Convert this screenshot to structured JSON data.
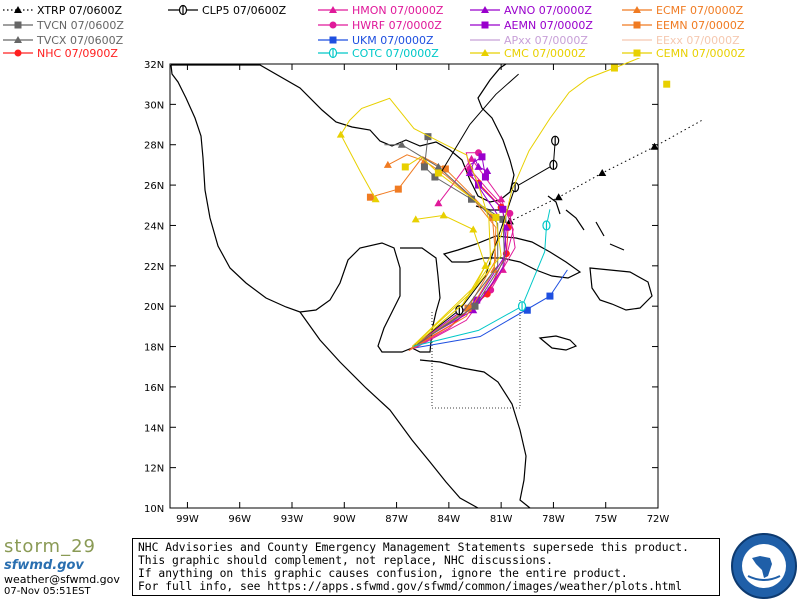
{
  "legend": [
    {
      "model": "XTRP",
      "time": "07/0600Z",
      "color": "#000000",
      "marker": "tri",
      "dashed": true
    },
    {
      "model": "CLP5",
      "time": "07/0600Z",
      "color": "#000000",
      "marker": "circbar",
      "dashed": false
    },
    {
      "model": "HMON",
      "time": "07/0000Z",
      "color": "#e0199a",
      "marker": "tri",
      "dashed": false
    },
    {
      "model": "AVNO",
      "time": "07/0000Z",
      "color": "#9900cc",
      "marker": "tri",
      "dashed": false
    },
    {
      "model": "ECMF",
      "time": "07/0000Z",
      "color": "#f07b22",
      "marker": "tri",
      "dashed": false
    },
    {
      "model": "TVCN",
      "time": "07/0600Z",
      "color": "#666666",
      "marker": "sq",
      "dashed": false
    },
    {
      "model": "HWRF",
      "time": "07/0000Z",
      "color": "#e0199a",
      "marker": "circ",
      "dashed": false
    },
    {
      "model": "AEMN",
      "time": "07/0000Z",
      "color": "#9900cc",
      "marker": "sq",
      "dashed": false
    },
    {
      "model": "EEMN",
      "time": "07/0000Z",
      "color": "#f07b22",
      "marker": "sq",
      "dashed": false
    },
    {
      "model": "TVCX",
      "time": "07/0600Z",
      "color": "#666666",
      "marker": "tri",
      "dashed": false
    },
    {
      "model": "UKM",
      "time": "07/0000Z",
      "color": "#1e4fe0",
      "marker": "sq",
      "dashed": false
    },
    {
      "model": "APxx",
      "time": "07/0000Z",
      "color": "#c8a0d8",
      "marker": "none",
      "dashed": false
    },
    {
      "model": "EExx",
      "time": "07/0000Z",
      "color": "#f5c8b0",
      "marker": "none",
      "dashed": false
    },
    {
      "model": "NHC",
      "time": "07/0900Z",
      "color": "#ff2020",
      "marker": "circ",
      "dashed": false
    },
    {
      "model": "COTC",
      "time": "07/0000Z",
      "color": "#00c8c8",
      "marker": "circbar",
      "dashed": false
    },
    {
      "model": "CMC",
      "time": "07/0000Z",
      "color": "#e8d000",
      "marker": "tri",
      "dashed": false
    },
    {
      "model": "CEMN",
      "time": "07/0000Z",
      "color": "#e8d000",
      "marker": "sq",
      "dashed": false
    }
  ],
  "map": {
    "lat_labels": [
      "32N",
      "30N",
      "28N",
      "26N",
      "24N",
      "22N",
      "20N",
      "18N",
      "16N",
      "14N",
      "12N",
      "10N"
    ],
    "lon_labels": [
      "99W",
      "96W",
      "93W",
      "90W",
      "87W",
      "84W",
      "81W",
      "78W",
      "75W",
      "72W"
    ],
    "lon_range": [
      -100,
      -72
    ],
    "lat_range": [
      10,
      32
    ]
  },
  "tracks": [
    {
      "model": "XTRP",
      "points": [
        [
          -69.5,
          29.2
        ],
        [
          -72.2,
          27.9
        ],
        [
          -75.2,
          26.6
        ],
        [
          -77.7,
          25.4
        ],
        [
          -80.5,
          24.2
        ]
      ],
      "markers": [
        [
          -72.2,
          27.9
        ],
        [
          -75.2,
          26.6
        ],
        [
          -77.7,
          25.4
        ],
        [
          -80.5,
          24.2
        ]
      ]
    },
    {
      "model": "UKM",
      "points": [
        [
          -86.2,
          17.9
        ],
        [
          -82.2,
          18.5
        ],
        [
          -78.2,
          20.5
        ],
        [
          -77.2,
          21.8
        ]
      ],
      "markers": [
        [
          -79.5,
          19.8
        ],
        [
          -78.2,
          20.5
        ]
      ]
    },
    {
      "model": "HWRF",
      "points": [
        [
          -86.3,
          17.8
        ],
        [
          -84.0,
          18.9
        ],
        [
          -81.6,
          20.8
        ],
        [
          -80.2,
          22.9
        ],
        [
          -80.5,
          24.6
        ],
        [
          -81.8,
          25.8
        ],
        [
          -82.8,
          26.8
        ],
        [
          -83.0,
          27.6
        ],
        [
          -82.3,
          27.6
        ]
      ],
      "markers": [
        [
          -81.6,
          20.8
        ],
        [
          -80.5,
          24.6
        ],
        [
          -82.8,
          26.8
        ],
        [
          -82.3,
          27.6
        ]
      ]
    },
    {
      "model": "HMON",
      "points": [
        [
          -86.0,
          17.9
        ],
        [
          -83.0,
          19.3
        ],
        [
          -80.9,
          21.8
        ],
        [
          -80.3,
          23.8
        ],
        [
          -81.0,
          25.3
        ],
        [
          -82.1,
          26.6
        ],
        [
          -82.7,
          27.3
        ],
        [
          -83.8,
          26.0
        ],
        [
          -84.6,
          25.1
        ]
      ],
      "markers": [
        [
          -80.9,
          21.8
        ],
        [
          -81.0,
          25.3
        ],
        [
          -82.7,
          27.3
        ],
        [
          -84.6,
          25.1
        ]
      ]
    },
    {
      "model": "NHC",
      "points": [
        [
          -86.2,
          17.9
        ],
        [
          -83.8,
          19.1
        ],
        [
          -81.8,
          20.6
        ],
        [
          -80.7,
          22.6
        ],
        [
          -80.6,
          23.9
        ],
        [
          -81.0,
          24.9
        ],
        [
          -82.3,
          26.1
        ],
        [
          -83.0,
          26.6
        ]
      ],
      "markers": [
        [
          -81.8,
          20.6
        ],
        [
          -80.7,
          22.6
        ],
        [
          -80.6,
          23.9
        ],
        [
          -81.0,
          24.9
        ],
        [
          -82.3,
          26.1
        ]
      ]
    },
    {
      "model": "AVNO",
      "points": [
        [
          -86.0,
          18.1
        ],
        [
          -82.6,
          19.8
        ],
        [
          -80.9,
          21.9
        ],
        [
          -80.7,
          23.9
        ],
        [
          -81.9,
          25.4
        ],
        [
          -82.8,
          26.6
        ],
        [
          -82.5,
          27.3
        ],
        [
          -82.3,
          26.9
        ],
        [
          -81.8,
          26.7
        ]
      ],
      "markers": [
        [
          -82.6,
          19.8
        ],
        [
          -80.7,
          23.9
        ],
        [
          -82.8,
          26.6
        ],
        [
          -82.3,
          26.9
        ],
        [
          -81.8,
          26.7
        ]
      ]
    },
    {
      "model": "AEMN",
      "points": [
        [
          -86.1,
          18.0
        ],
        [
          -82.4,
          20.3
        ],
        [
          -80.7,
          22.6
        ],
        [
          -80.9,
          24.8
        ],
        [
          -82.3,
          26.0
        ],
        [
          -82.8,
          27.0
        ],
        [
          -82.1,
          27.4
        ],
        [
          -81.9,
          26.4
        ]
      ],
      "markers": [
        [
          -82.4,
          20.3
        ],
        [
          -80.9,
          24.8
        ],
        [
          -82.3,
          26.0
        ],
        [
          -82.1,
          27.4
        ],
        [
          -81.9,
          26.4
        ]
      ]
    },
    {
      "model": "ECMF",
      "points": [
        [
          -86.3,
          17.8
        ],
        [
          -83.0,
          19.5
        ],
        [
          -81.4,
          21.8
        ],
        [
          -81.3,
          23.9
        ],
        [
          -82.6,
          25.3
        ],
        [
          -84.2,
          26.5
        ],
        [
          -85.4,
          27.2
        ],
        [
          -86.4,
          27.5
        ],
        [
          -87.5,
          27.0
        ]
      ],
      "markers": [
        [
          -81.4,
          21.8
        ],
        [
          -82.6,
          25.3
        ],
        [
          -85.4,
          27.2
        ],
        [
          -87.5,
          27.0
        ]
      ]
    },
    {
      "model": "EEMN",
      "points": [
        [
          -86.2,
          17.9
        ],
        [
          -82.9,
          19.9
        ],
        [
          -81.3,
          22.3
        ],
        [
          -81.5,
          24.4
        ],
        [
          -82.8,
          25.6
        ],
        [
          -84.2,
          26.8
        ],
        [
          -85.5,
          27.4
        ],
        [
          -86.9,
          25.8
        ],
        [
          -88.5,
          25.4
        ]
      ],
      "markers": [
        [
          -82.9,
          19.9
        ],
        [
          -81.5,
          24.4
        ],
        [
          -84.2,
          26.8
        ],
        [
          -86.9,
          25.8
        ],
        [
          -88.5,
          25.4
        ]
      ]
    },
    {
      "model": "TVCN",
      "points": [
        [
          -86.0,
          18.0
        ],
        [
          -82.5,
          20.0
        ],
        [
          -80.8,
          22.3
        ],
        [
          -80.9,
          24.3
        ],
        [
          -82.7,
          25.3
        ],
        [
          -84.8,
          26.4
        ],
        [
          -85.4,
          26.9
        ],
        [
          -85.2,
          28.4
        ]
      ],
      "markers": [
        [
          -82.5,
          20.0
        ],
        [
          -80.9,
          24.3
        ],
        [
          -82.7,
          25.3
        ],
        [
          -84.8,
          26.4
        ],
        [
          -85.4,
          26.9
        ],
        [
          -85.2,
          28.4
        ]
      ]
    },
    {
      "model": "TVCX",
      "points": [
        [
          -86.0,
          18.0
        ],
        [
          -83.3,
          19.6
        ],
        [
          -81.2,
          22.0
        ],
        [
          -81.2,
          24.1
        ],
        [
          -82.8,
          25.5
        ],
        [
          -84.6,
          26.9
        ],
        [
          -86.7,
          28.0
        ],
        [
          -87.7,
          28.0
        ]
      ],
      "markers": [
        [
          -84.6,
          26.9
        ],
        [
          -86.7,
          28.0
        ]
      ]
    },
    {
      "model": "CLP5",
      "points": [
        [
          -86.1,
          18.0
        ],
        [
          -83.4,
          19.8
        ],
        [
          -81.9,
          21.5
        ],
        [
          -81.1,
          23.6
        ],
        [
          -80.2,
          25.9
        ],
        [
          -78.0,
          27.0
        ],
        [
          -77.9,
          28.2
        ]
      ],
      "markers": [
        [
          -83.4,
          19.8
        ],
        [
          -80.2,
          25.9
        ],
        [
          -78.0,
          27.0
        ],
        [
          -77.9,
          28.2
        ]
      ]
    },
    {
      "model": "COTC",
      "points": [
        [
          -86.1,
          18.0
        ],
        [
          -82.3,
          18.8
        ],
        [
          -79.8,
          20.0
        ],
        [
          -78.5,
          22.7
        ],
        [
          -78.4,
          24.0
        ],
        [
          -78.2,
          24.8
        ]
      ],
      "markers": [
        [
          -79.8,
          20.0
        ],
        [
          -78.4,
          24.0
        ]
      ]
    },
    {
      "model": "CMC",
      "points": [
        [
          -85.9,
          18.1
        ],
        [
          -83.2,
          20.1
        ],
        [
          -81.9,
          22.0
        ],
        [
          -82.6,
          23.8
        ],
        [
          -84.3,
          24.5
        ],
        [
          -85.9,
          24.3
        ]
      ],
      "markers": [
        [
          -81.9,
          22.0
        ],
        [
          -82.6,
          23.8
        ],
        [
          -84.3,
          24.5
        ],
        [
          -85.9,
          24.3
        ]
      ]
    },
    {
      "model": "CEMN",
      "points": [
        [
          -86.1,
          18.0
        ],
        [
          -82.7,
          20.7
        ],
        [
          -81.0,
          22.5
        ],
        [
          -81.3,
          24.4
        ],
        [
          -82.6,
          25.3
        ],
        [
          -84.6,
          26.6
        ],
        [
          -85.6,
          27.4
        ],
        [
          -86.5,
          26.9
        ]
      ],
      "markers": [
        [
          -81.3,
          24.4
        ],
        [
          -84.6,
          26.6
        ],
        [
          -86.5,
          26.9
        ]
      ]
    },
    {
      "model": "CMC",
      "points": [
        [
          -85.9,
          18.1
        ],
        [
          -83.2,
          20.1
        ],
        [
          -81.6,
          22.1
        ],
        [
          -81.7,
          24.3
        ],
        [
          -82.3,
          26.0
        ],
        [
          -83.0,
          27.5
        ],
        [
          -84.2,
          28.0
        ],
        [
          -86.0,
          28.8
        ],
        [
          -87.4,
          30.3
        ],
        [
          -89.0,
          29.8
        ],
        [
          -89.7,
          29.2
        ],
        [
          -90.2,
          28.5
        ],
        [
          -89.1,
          26.7
        ],
        [
          -88.2,
          25.3
        ]
      ],
      "markers": [
        [
          -90.2,
          28.5
        ],
        [
          -88.2,
          25.3
        ]
      ]
    },
    {
      "model": "CEMN",
      "points": [
        [
          -86.1,
          18.0
        ],
        [
          -82.5,
          21.0
        ],
        [
          -81.0,
          23.5
        ],
        [
          -80.4,
          25.7
        ],
        [
          -79.4,
          27.7
        ],
        [
          -78.2,
          29.3
        ],
        [
          -77.1,
          30.6
        ],
        [
          -76.0,
          31.3
        ],
        [
          -74.5,
          31.8
        ],
        [
          -72.5,
          32.5
        ]
      ],
      "markers": [
        [
          -74.5,
          31.8
        ],
        [
          -71.5,
          31.0
        ]
      ]
    },
    {
      "model": "CLP5",
      "points": [
        [
          -84.4,
          26.7
        ],
        [
          -82.8,
          29.0
        ],
        [
          -81.3,
          30.5
        ],
        [
          -80.0,
          31.5
        ]
      ],
      "markers": []
    }
  ],
  "disclaimer": {
    "line1": "NHC Advisories and County Emergency Management Statements supersede this product.",
    "line2": "This graphic should complement, not replace, NHC discussions.",
    "line3": "If anything on this graphic causes confusion, ignore the entire product.",
    "line4": "For full info, see  https://apps.sfwmd.gov/sfwmd/common/images/weather/plots.html"
  },
  "branding": {
    "storm": "storm_29",
    "site": "sfwmd.gov",
    "email": "weather@sfwmd.gov",
    "issued": "07-Nov 05:51EST"
  }
}
